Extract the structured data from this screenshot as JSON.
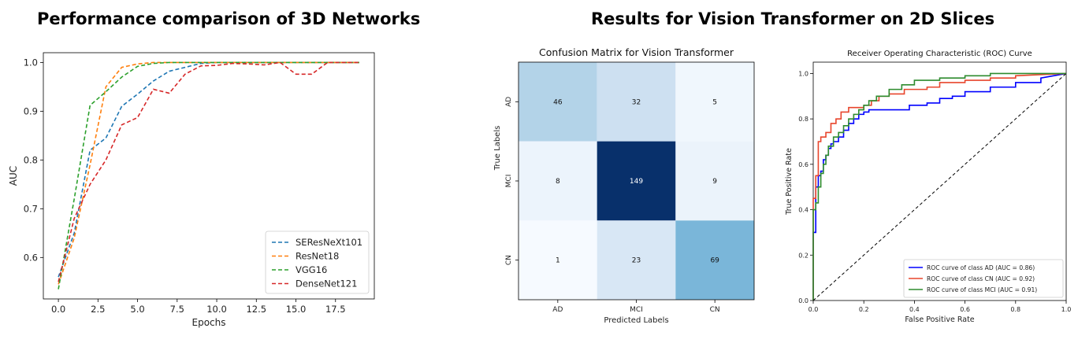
{
  "headings": {
    "left": "Performance comparison of 3D Networks",
    "right": "Results for Vision Transformer on 2D Slices"
  },
  "chart_data": [
    {
      "type": "line",
      "title": "",
      "xlabel": "Epochs",
      "ylabel": "AUC",
      "xlim": [
        -0.95,
        19.95
      ],
      "ylim": [
        0.515,
        1.02
      ],
      "xticks": [
        0.0,
        2.5,
        5.0,
        7.5,
        10.0,
        12.5,
        15.0,
        17.5
      ],
      "yticks": [
        0.6,
        0.7,
        0.8,
        0.9,
        1.0
      ],
      "legend_position": "lower right",
      "grid": false,
      "series": [
        {
          "name": "SEResNeXt101",
          "color": "#1f77b4",
          "x": [
            0,
            1,
            2,
            3,
            4,
            5,
            6,
            7,
            8,
            9,
            10,
            11,
            12,
            13,
            14,
            15,
            16,
            17,
            18,
            19
          ],
          "y": [
            0.56,
            0.65,
            0.82,
            0.845,
            0.91,
            0.935,
            0.962,
            0.982,
            0.99,
            0.998,
            1.0,
            1.0,
            1.0,
            1.0,
            1.0,
            1.0,
            1.0,
            1.0,
            1.0,
            1.0
          ]
        },
        {
          "name": "ResNet18",
          "color": "#ff7f0e",
          "x": [
            0,
            1,
            2,
            3,
            4,
            5,
            6,
            7,
            8,
            9,
            10,
            11,
            12,
            13,
            14,
            15,
            16,
            17,
            18,
            19
          ],
          "y": [
            0.545,
            0.64,
            0.79,
            0.95,
            0.99,
            0.997,
            1.0,
            1.0,
            1.0,
            1.0,
            1.0,
            1.0,
            1.0,
            1.0,
            1.0,
            1.0,
            1.0,
            1.0,
            1.0,
            1.0
          ]
        },
        {
          "name": "VGG16",
          "color": "#2ca02c",
          "x": [
            0,
            1,
            2,
            3,
            4,
            5,
            6,
            7,
            8,
            9,
            10,
            11,
            12,
            13,
            14,
            15,
            16,
            17,
            18,
            19
          ],
          "y": [
            0.535,
            0.72,
            0.912,
            0.94,
            0.97,
            0.992,
            0.998,
            1.0,
            1.0,
            1.0,
            1.0,
            1.0,
            1.0,
            1.0,
            1.0,
            1.0,
            1.0,
            1.0,
            1.0,
            1.0
          ]
        },
        {
          "name": "DenseNet121",
          "color": "#d62728",
          "x": [
            0,
            1,
            2,
            3,
            4,
            5,
            6,
            7,
            8,
            9,
            10,
            11,
            12,
            13,
            14,
            15,
            16,
            17,
            18,
            19
          ],
          "y": [
            0.55,
            0.68,
            0.75,
            0.8,
            0.872,
            0.887,
            0.945,
            0.937,
            0.976,
            0.993,
            0.994,
            0.998,
            0.997,
            0.995,
            1.0,
            0.976,
            0.976,
            1.0,
            1.0,
            1.0
          ]
        }
      ]
    },
    {
      "type": "heatmap",
      "title": "Confusion Matrix for Vision Transformer",
      "xlabel": "Predicted Labels",
      "ylabel": "True Labels",
      "x_categories": [
        "AD",
        "MCI",
        "CN"
      ],
      "y_categories": [
        "AD",
        "MCI",
        "CN"
      ],
      "colormap": "Blues",
      "values": [
        [
          46,
          32,
          5
        ],
        [
          8,
          149,
          9
        ],
        [
          1,
          23,
          69
        ]
      ]
    },
    {
      "type": "line",
      "title": "Receiver Operating Characteristic (ROC) Curve",
      "xlabel": "False Positive Rate",
      "ylabel": "True Positive Rate",
      "xlim": [
        0.0,
        1.0
      ],
      "ylim": [
        0.0,
        1.05
      ],
      "xticks": [
        0.0,
        0.2,
        0.4,
        0.6,
        0.8,
        1.0
      ],
      "yticks": [
        0.0,
        0.2,
        0.4,
        0.6,
        0.8,
        1.0
      ],
      "legend_position": "lower right",
      "grid": false,
      "series": [
        {
          "name": "ROC curve of class AD (AUC = 0.86)",
          "color": "#0000ff",
          "x": [
            0,
            0,
            0.01,
            0.01,
            0.02,
            0.02,
            0.03,
            0.03,
            0.04,
            0.04,
            0.05,
            0.05,
            0.06,
            0.06,
            0.07,
            0.07,
            0.08,
            0.08,
            0.1,
            0.1,
            0.12,
            0.12,
            0.14,
            0.14,
            0.16,
            0.16,
            0.18,
            0.18,
            0.2,
            0.2,
            0.22,
            0.22,
            0.25,
            0.25,
            0.3,
            0.3,
            0.38,
            0.38,
            0.45,
            0.45,
            0.5,
            0.5,
            0.55,
            0.55,
            0.6,
            0.6,
            0.7,
            0.7,
            0.8,
            0.8,
            0.9,
            0.9,
            1.0
          ],
          "y": [
            0,
            0.3,
            0.3,
            0.5,
            0.5,
            0.55,
            0.55,
            0.57,
            0.57,
            0.62,
            0.62,
            0.64,
            0.64,
            0.67,
            0.67,
            0.69,
            0.69,
            0.7,
            0.7,
            0.72,
            0.72,
            0.75,
            0.75,
            0.78,
            0.78,
            0.8,
            0.8,
            0.82,
            0.82,
            0.83,
            0.83,
            0.84,
            0.84,
            0.84,
            0.84,
            0.84,
            0.84,
            0.86,
            0.86,
            0.87,
            0.87,
            0.89,
            0.89,
            0.9,
            0.9,
            0.92,
            0.92,
            0.94,
            0.94,
            0.96,
            0.96,
            0.98,
            1.0
          ]
        },
        {
          "name": "ROC curve of class CN (AUC = 0.92)",
          "color": "#e8452c",
          "x": [
            0,
            0,
            0.01,
            0.01,
            0.02,
            0.02,
            0.03,
            0.03,
            0.05,
            0.05,
            0.07,
            0.07,
            0.09,
            0.09,
            0.11,
            0.11,
            0.14,
            0.14,
            0.2,
            0.2,
            0.23,
            0.23,
            0.26,
            0.26,
            0.3,
            0.3,
            0.36,
            0.36,
            0.45,
            0.45,
            0.5,
            0.5,
            0.6,
            0.6,
            0.7,
            0.7,
            0.8,
            0.8,
            1.0
          ],
          "y": [
            0,
            0.45,
            0.45,
            0.55,
            0.55,
            0.7,
            0.7,
            0.72,
            0.72,
            0.74,
            0.74,
            0.78,
            0.78,
            0.8,
            0.8,
            0.83,
            0.83,
            0.85,
            0.85,
            0.86,
            0.86,
            0.88,
            0.88,
            0.9,
            0.9,
            0.91,
            0.91,
            0.93,
            0.93,
            0.94,
            0.94,
            0.96,
            0.96,
            0.97,
            0.97,
            0.98,
            0.98,
            0.99,
            1.0
          ]
        },
        {
          "name": "ROC curve of class MCI (AUC = 0.91)",
          "color": "#2e8b2e",
          "x": [
            0,
            0,
            0.01,
            0.01,
            0.02,
            0.02,
            0.03,
            0.03,
            0.04,
            0.04,
            0.05,
            0.05,
            0.06,
            0.06,
            0.08,
            0.08,
            0.1,
            0.1,
            0.12,
            0.12,
            0.14,
            0.14,
            0.16,
            0.16,
            0.18,
            0.18,
            0.2,
            0.2,
            0.22,
            0.22,
            0.25,
            0.25,
            0.3,
            0.3,
            0.35,
            0.35,
            0.4,
            0.4,
            0.5,
            0.5,
            0.6,
            0.6,
            0.7,
            0.7,
            1.0
          ],
          "y": [
            0,
            0.4,
            0.4,
            0.43,
            0.43,
            0.5,
            0.5,
            0.56,
            0.56,
            0.6,
            0.6,
            0.64,
            0.64,
            0.68,
            0.68,
            0.72,
            0.72,
            0.74,
            0.74,
            0.77,
            0.77,
            0.8,
            0.8,
            0.82,
            0.82,
            0.84,
            0.84,
            0.86,
            0.86,
            0.88,
            0.88,
            0.9,
            0.9,
            0.93,
            0.93,
            0.95,
            0.95,
            0.97,
            0.97,
            0.98,
            0.98,
            0.99,
            0.99,
            1.0,
            1.0
          ]
        },
        {
          "name": "",
          "color": "#000000",
          "dashed": true,
          "x": [
            0,
            1
          ],
          "y": [
            0,
            1
          ]
        }
      ]
    }
  ]
}
